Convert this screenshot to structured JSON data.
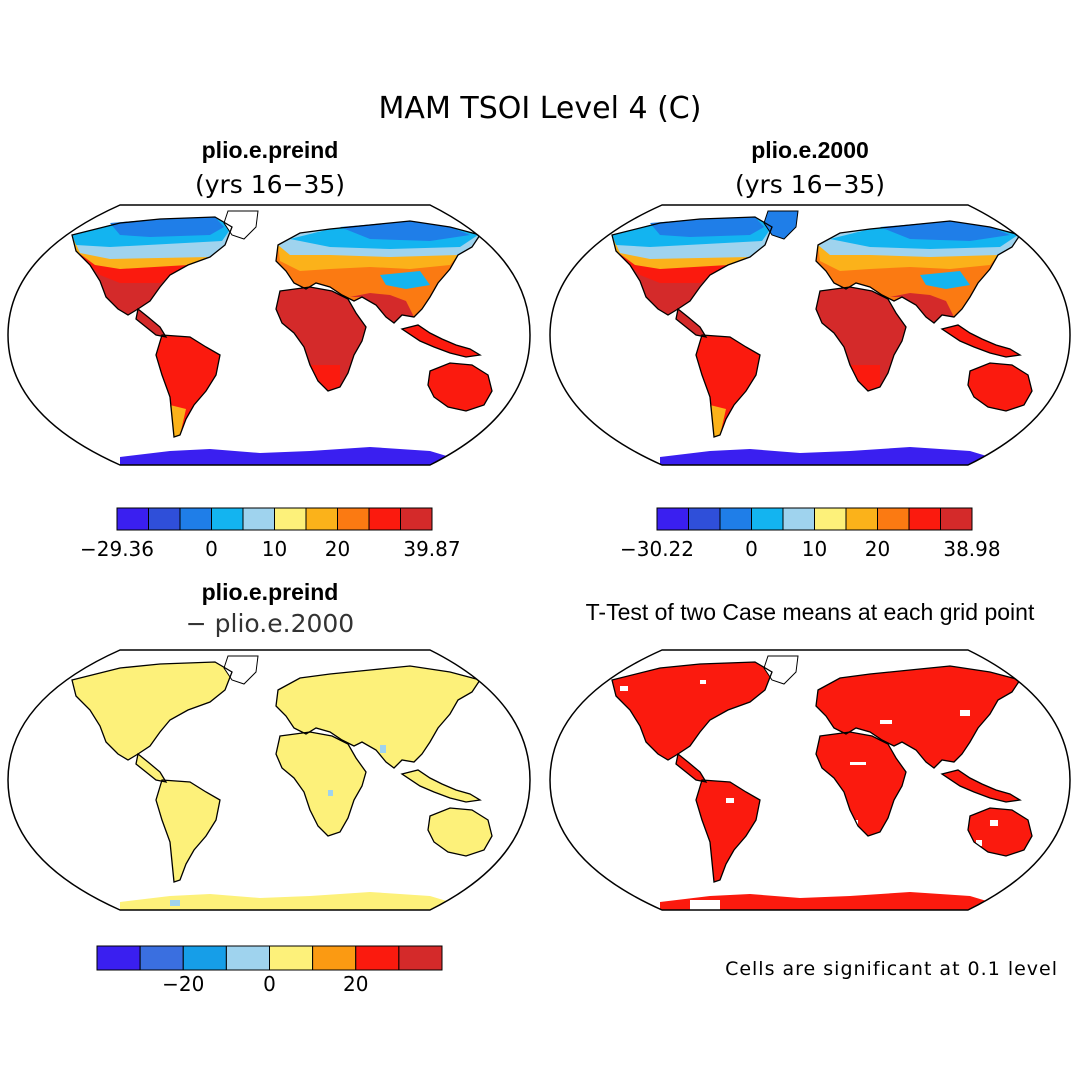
{
  "figure": {
    "title": "MAM TSOI Level 4 (C)",
    "note": "Cells are significant at 0.1 level"
  },
  "panels": [
    {
      "id": "p1",
      "title": "plio.e.preind",
      "subtitle": "(yrs 16−35)",
      "colorbar": {
        "colors": [
          "#3a1ff0",
          "#2f4fd9",
          "#1f7ee8",
          "#13b4f0",
          "#9fd3ee",
          "#fdf17a",
          "#fbb21a",
          "#fb7a12",
          "#fb1a0e",
          "#d42a2a"
        ],
        "tick_labels": [
          "−29.36",
          "0",
          "10",
          "20",
          "39.87"
        ]
      }
    },
    {
      "id": "p2",
      "title": "plio.e.2000",
      "subtitle": "(yrs 16−35)",
      "colorbar": {
        "colors": [
          "#3a1ff0",
          "#2f4fd9",
          "#1f7ee8",
          "#13b4f0",
          "#9fd3ee",
          "#fdf17a",
          "#fbb21a",
          "#fb7a12",
          "#fb1a0e",
          "#d42a2a"
        ],
        "tick_labels": [
          "−30.22",
          "0",
          "10",
          "20",
          "38.98"
        ]
      }
    },
    {
      "id": "p3",
      "title": "plio.e.preind",
      "subtitle": "− plio.e.2000",
      "colorbar": {
        "colors": [
          "#3a1ff0",
          "#3a6fe0",
          "#169ee8",
          "#9fd3ee",
          "#fdf17a",
          "#fb9a12",
          "#fb1a0e",
          "#d42a2a"
        ],
        "tick_labels": [
          "−20",
          "0",
          "20"
        ]
      }
    },
    {
      "id": "p4",
      "title": "T-Test of two Case means at each grid point"
    }
  ]
}
